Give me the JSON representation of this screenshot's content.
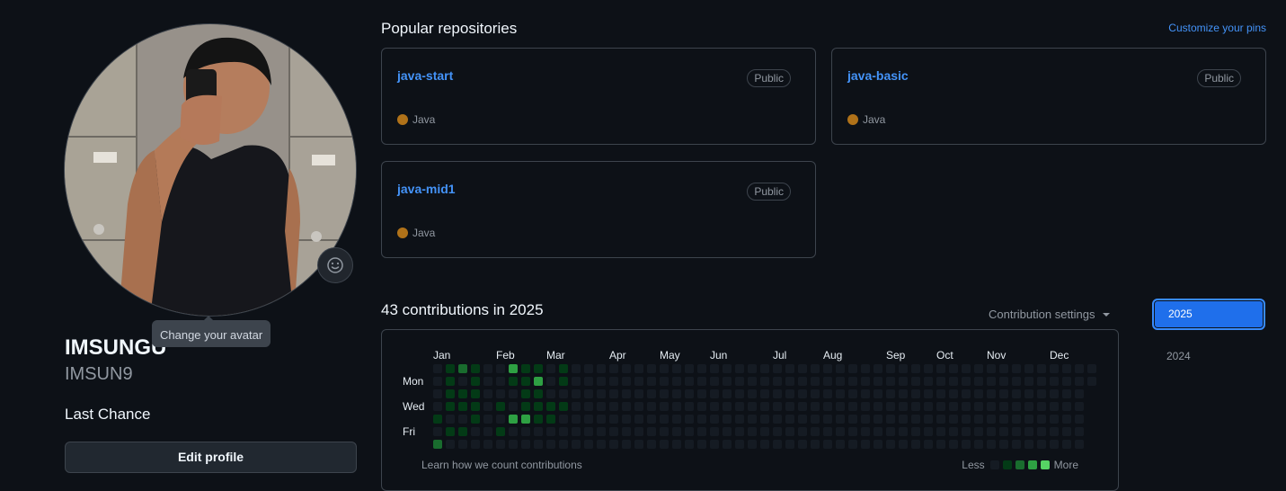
{
  "profile": {
    "avatar_tooltip": "Change your avatar",
    "display_name": "IMSUNGU",
    "username": "IMSUN9",
    "bio": "Last Chance",
    "edit_button": "Edit profile"
  },
  "popular": {
    "title": "Popular repositories",
    "customize_link": "Customize your pins",
    "repos": [
      {
        "name": "java-start",
        "visibility": "Public",
        "language": "Java"
      },
      {
        "name": "java-basic",
        "visibility": "Public",
        "language": "Java"
      },
      {
        "name": "java-mid1",
        "visibility": "Public",
        "language": "Java"
      }
    ]
  },
  "contributions": {
    "title": "43 contributions in 2025",
    "settings_label": "Contribution settings",
    "years": [
      "2025",
      "2024"
    ],
    "months": [
      "Jan",
      "Feb",
      "Mar",
      "Apr",
      "May",
      "Jun",
      "Jul",
      "Aug",
      "Sep",
      "Oct",
      "Nov",
      "Dec"
    ],
    "day_labels": [
      "Mon",
      "Wed",
      "Fri"
    ],
    "learn_link": "Learn how we count contributions",
    "legend_less": "Less",
    "legend_more": "More",
    "weeks": 53,
    "last_week_days": 2,
    "levels": [
      [
        0,
        0,
        0,
        0,
        1,
        0,
        2
      ],
      [
        1,
        1,
        1,
        1,
        0,
        1,
        0
      ],
      [
        2,
        0,
        1,
        1,
        0,
        1,
        0
      ],
      [
        1,
        1,
        1,
        1,
        1,
        0,
        0
      ],
      [
        0,
        0,
        0,
        0,
        0,
        0,
        0
      ],
      [
        0,
        0,
        0,
        1,
        0,
        1,
        0
      ],
      [
        3,
        1,
        0,
        0,
        3,
        0,
        0
      ],
      [
        1,
        1,
        1,
        1,
        3,
        0,
        0
      ],
      [
        1,
        3,
        1,
        1,
        1,
        0,
        0
      ],
      [
        0,
        0,
        0,
        1,
        1,
        0,
        0
      ],
      [
        1,
        1,
        0,
        1,
        0,
        0,
        0
      ]
    ],
    "colors": [
      "#151b23",
      "#033a16",
      "#196c2e",
      "#2ea043",
      "#56d364"
    ]
  }
}
